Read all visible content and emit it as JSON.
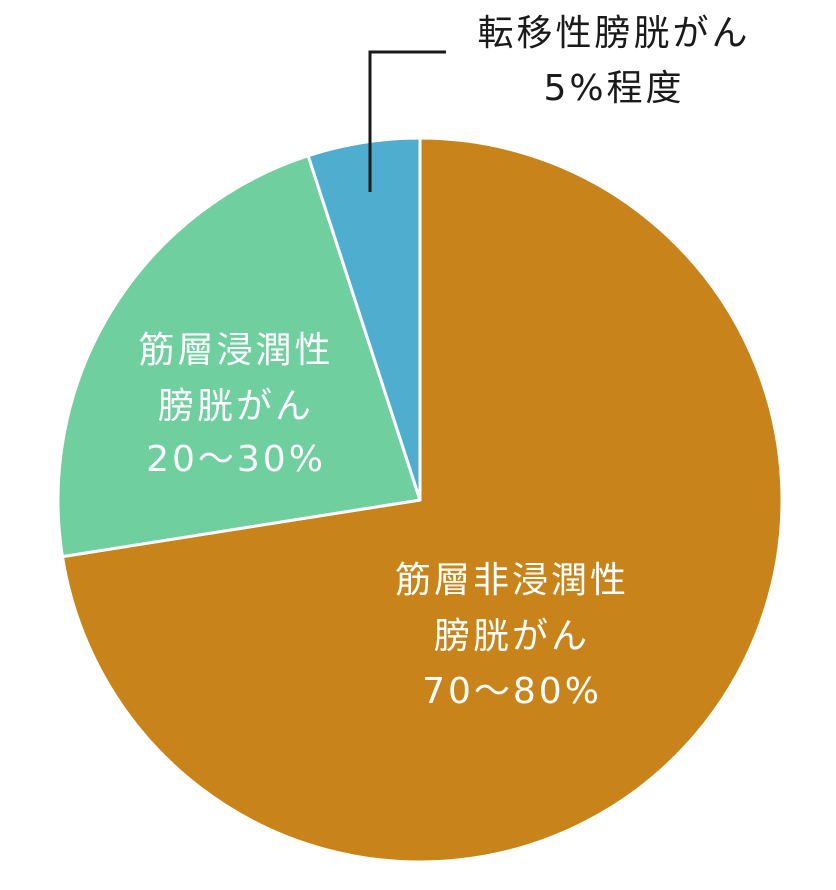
{
  "chart_data": {
    "type": "pie",
    "slices": [
      {
        "name_lines": [
          "筋層非浸潤性",
          "膀胱がん"
        ],
        "percent_label": "70〜80%",
        "value": 72.5,
        "color": "#C8841A"
      },
      {
        "name_lines": [
          "筋層浸潤性",
          "膀胱がん"
        ],
        "percent_label": "20〜30%",
        "value": 22.5,
        "color": "#6FCF9F"
      },
      {
        "name_lines": [
          "転移性膀胱がん"
        ],
        "percent_label": "5%程度",
        "value": 5,
        "color": "#4FADD0"
      }
    ],
    "direction": "clockwise from top",
    "legend": "none"
  }
}
